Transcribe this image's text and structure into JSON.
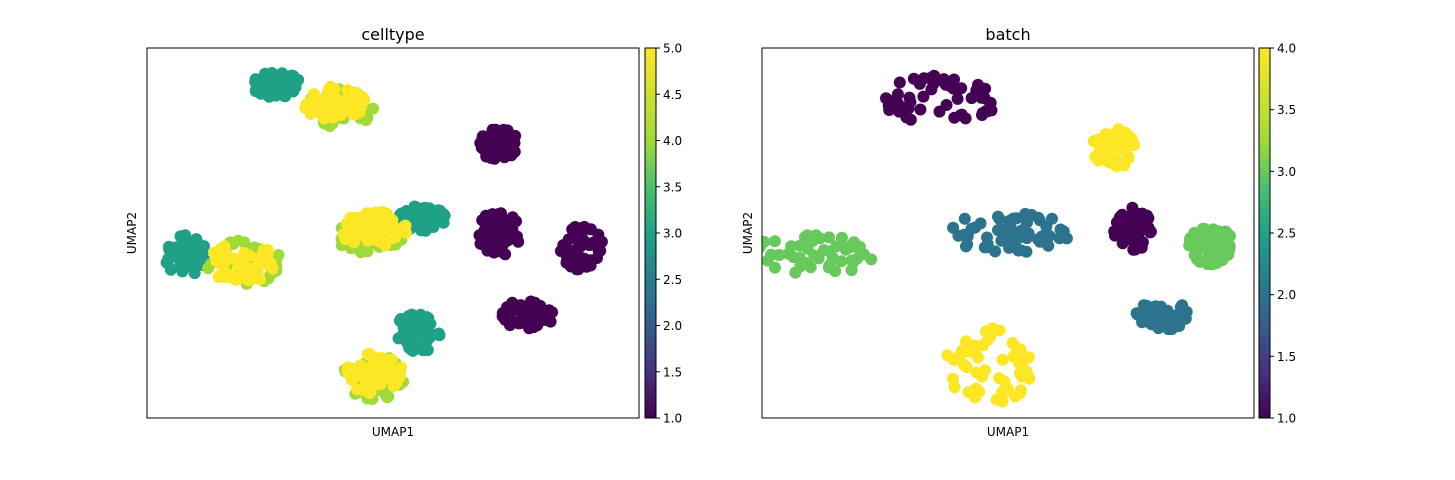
{
  "figure": {
    "panels": [
      {
        "title": "celltype",
        "xlabel": "UMAP1",
        "ylabel": "UMAP2",
        "colorbar": {
          "min": 1.0,
          "max": 5.0,
          "ticks": [
            "1.0",
            "1.5",
            "2.0",
            "2.5",
            "3.0",
            "3.5",
            "4.0",
            "4.5",
            "5.0"
          ],
          "colormap": "viridis"
        }
      },
      {
        "title": "batch",
        "xlabel": "UMAP1",
        "ylabel": "UMAP2",
        "colorbar": {
          "min": 1.0,
          "max": 4.0,
          "ticks": [
            "1.0",
            "1.5",
            "2.0",
            "2.5",
            "3.0",
            "3.5",
            "4.0"
          ],
          "colormap": "viridis"
        }
      }
    ]
  },
  "chart_data": [
    {
      "type": "scatter",
      "title": "celltype",
      "xlabel": "UMAP1",
      "ylabel": "UMAP2",
      "xticks": "none",
      "yticks": "none",
      "grid": false,
      "color_scale": {
        "colormap": "viridis",
        "min": 1,
        "max": 5
      },
      "clusters": [
        {
          "cx": 7.1,
          "cy": 7.4,
          "rx": 0.4,
          "ry": 0.45,
          "value": 1
        },
        {
          "cx": 7.1,
          "cy": 5.0,
          "rx": 0.45,
          "ry": 0.6,
          "value": 1
        },
        {
          "cx": 8.8,
          "cy": 4.6,
          "rx": 0.45,
          "ry": 0.6,
          "value": 1
        },
        {
          "cx": 7.7,
          "cy": 2.8,
          "rx": 0.55,
          "ry": 0.4,
          "value": 1
        },
        {
          "cx": 2.5,
          "cy": 9.0,
          "rx": 0.55,
          "ry": 0.35,
          "value": 3
        },
        {
          "cx": 3.8,
          "cy": 8.4,
          "rx": 0.7,
          "ry": 0.55,
          "value": 4
        },
        {
          "cx": 3.7,
          "cy": 8.5,
          "rx": 0.65,
          "ry": 0.5,
          "value": 5
        },
        {
          "cx": 5.5,
          "cy": 5.4,
          "rx": 0.55,
          "ry": 0.35,
          "value": 3
        },
        {
          "cx": 4.4,
          "cy": 4.9,
          "rx": 0.7,
          "ry": 0.45,
          "value": 4
        },
        {
          "cx": 4.5,
          "cy": 5.1,
          "rx": 0.7,
          "ry": 0.5,
          "value": 5
        },
        {
          "cx": 0.6,
          "cy": 4.4,
          "rx": 0.45,
          "ry": 0.55,
          "value": 3
        },
        {
          "cx": 1.8,
          "cy": 4.2,
          "rx": 0.8,
          "ry": 0.6,
          "value": 4
        },
        {
          "cx": 1.8,
          "cy": 4.2,
          "rx": 0.75,
          "ry": 0.55,
          "value": 5
        },
        {
          "cx": 5.4,
          "cy": 2.3,
          "rx": 0.5,
          "ry": 0.55,
          "value": 3
        },
        {
          "cx": 4.5,
          "cy": 1.1,
          "rx": 0.65,
          "ry": 0.6,
          "value": 4
        },
        {
          "cx": 4.5,
          "cy": 1.2,
          "rx": 0.6,
          "ry": 0.55,
          "value": 5
        }
      ]
    },
    {
      "type": "scatter",
      "title": "batch",
      "xlabel": "UMAP1",
      "ylabel": "UMAP2",
      "xticks": "none",
      "yticks": "none",
      "grid": false,
      "color_scale": {
        "colormap": "viridis",
        "min": 1,
        "max": 4
      },
      "clusters": [
        {
          "cx": 3.5,
          "cy": 8.6,
          "rx": 1.2,
          "ry": 0.7,
          "value": 1
        },
        {
          "cx": 7.1,
          "cy": 7.3,
          "rx": 0.45,
          "ry": 0.55,
          "value": 4
        },
        {
          "cx": 7.5,
          "cy": 5.1,
          "rx": 0.4,
          "ry": 0.6,
          "value": 1
        },
        {
          "cx": 9.1,
          "cy": 4.7,
          "rx": 0.45,
          "ry": 0.55,
          "value": 3
        },
        {
          "cx": 4.9,
          "cy": 5.0,
          "rx": 1.3,
          "ry": 0.55,
          "value": 2
        },
        {
          "cx": 0.8,
          "cy": 4.4,
          "rx": 1.3,
          "ry": 0.55,
          "value": 3
        },
        {
          "cx": 8.1,
          "cy": 2.8,
          "rx": 0.55,
          "ry": 0.45,
          "value": 2
        },
        {
          "cx": 4.5,
          "cy": 1.4,
          "rx": 0.9,
          "ry": 1.1,
          "value": 4
        }
      ]
    }
  ]
}
